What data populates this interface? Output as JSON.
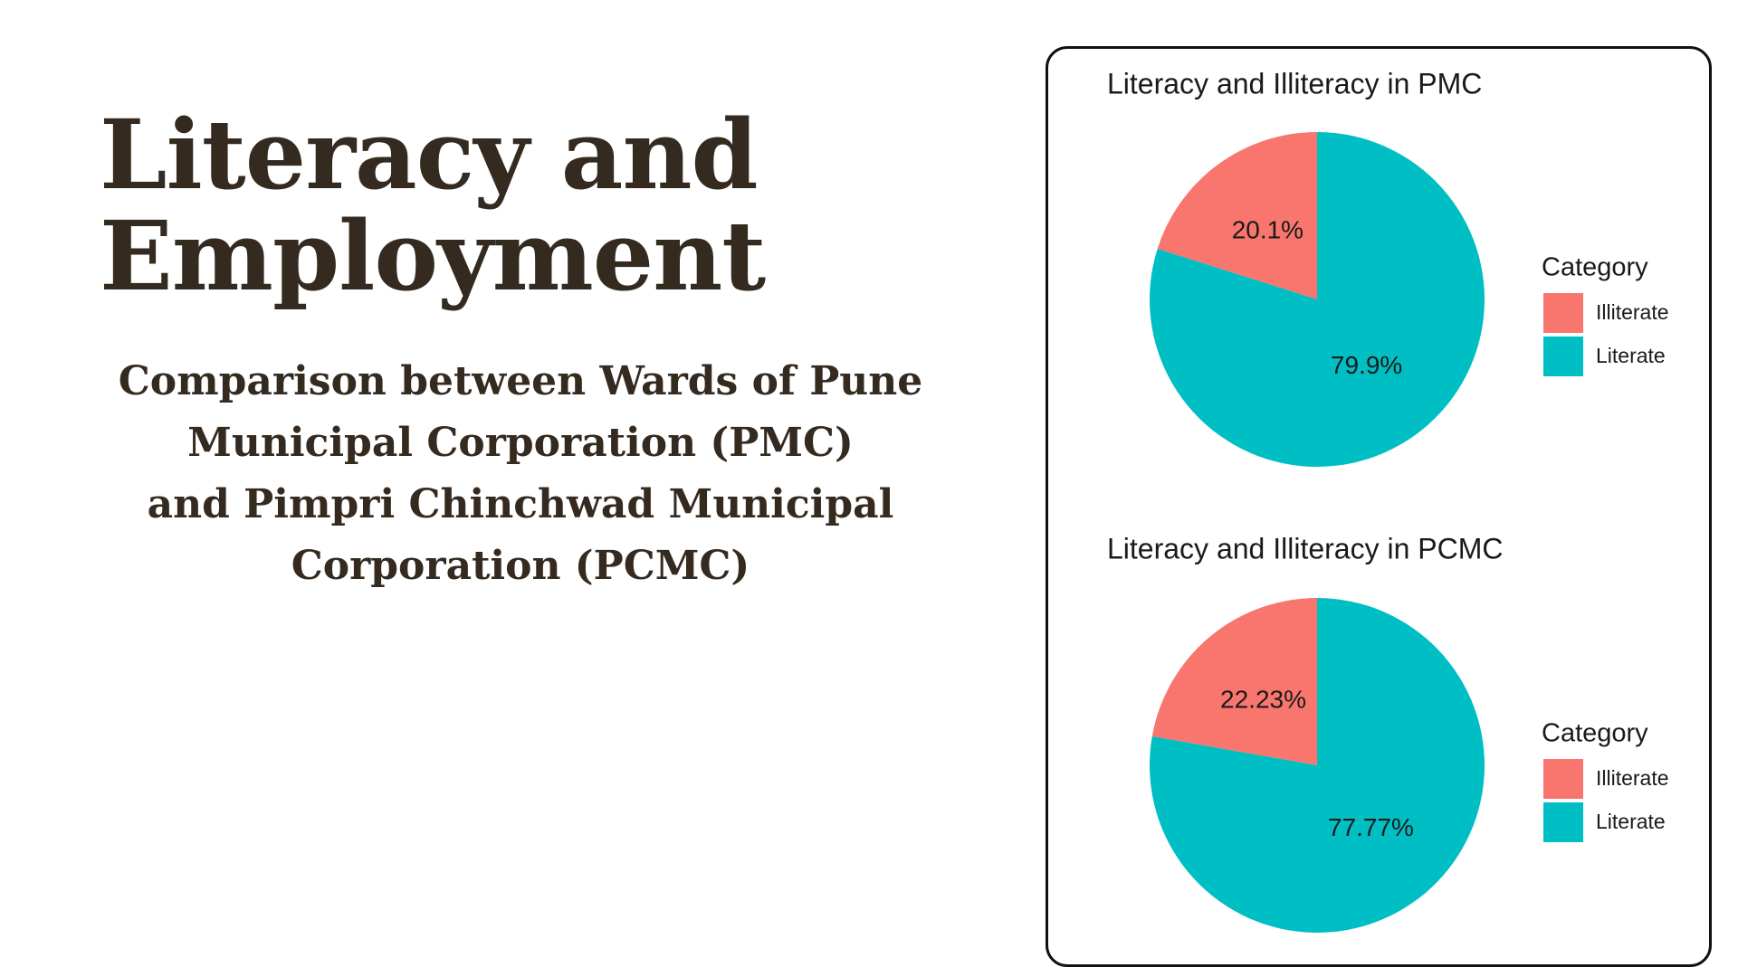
{
  "slide": {
    "title_lines": [
      "Literacy and",
      "Employment"
    ],
    "subtitle_lines": [
      "Comparison between Wards of Pune",
      "Municipal Corporation (PMC)",
      "and Pimpri Chinchwad Municipal",
      "Corporation (PCMC)"
    ]
  },
  "colors": {
    "text": "#352a1f",
    "illiterate": "#f8766d",
    "literate": "#00bfc4"
  },
  "chart_data": [
    {
      "type": "pie",
      "title": "Literacy and Illiteracy in PMC",
      "legend_title": "Category",
      "legend_position": "right",
      "categories": [
        "Illiterate",
        "Literate"
      ],
      "values": [
        20.1,
        79.9
      ],
      "labels": [
        "20.1%",
        "79.9%"
      ],
      "colors": [
        "#f8766d",
        "#00bfc4"
      ]
    },
    {
      "type": "pie",
      "title": "Literacy and Illiteracy in PCMC",
      "legend_title": "Category",
      "legend_position": "right",
      "categories": [
        "Illiterate",
        "Literate"
      ],
      "values": [
        22.23,
        77.77
      ],
      "labels": [
        "22.23%",
        "77.77%"
      ],
      "colors": [
        "#f8766d",
        "#00bfc4"
      ]
    }
  ]
}
